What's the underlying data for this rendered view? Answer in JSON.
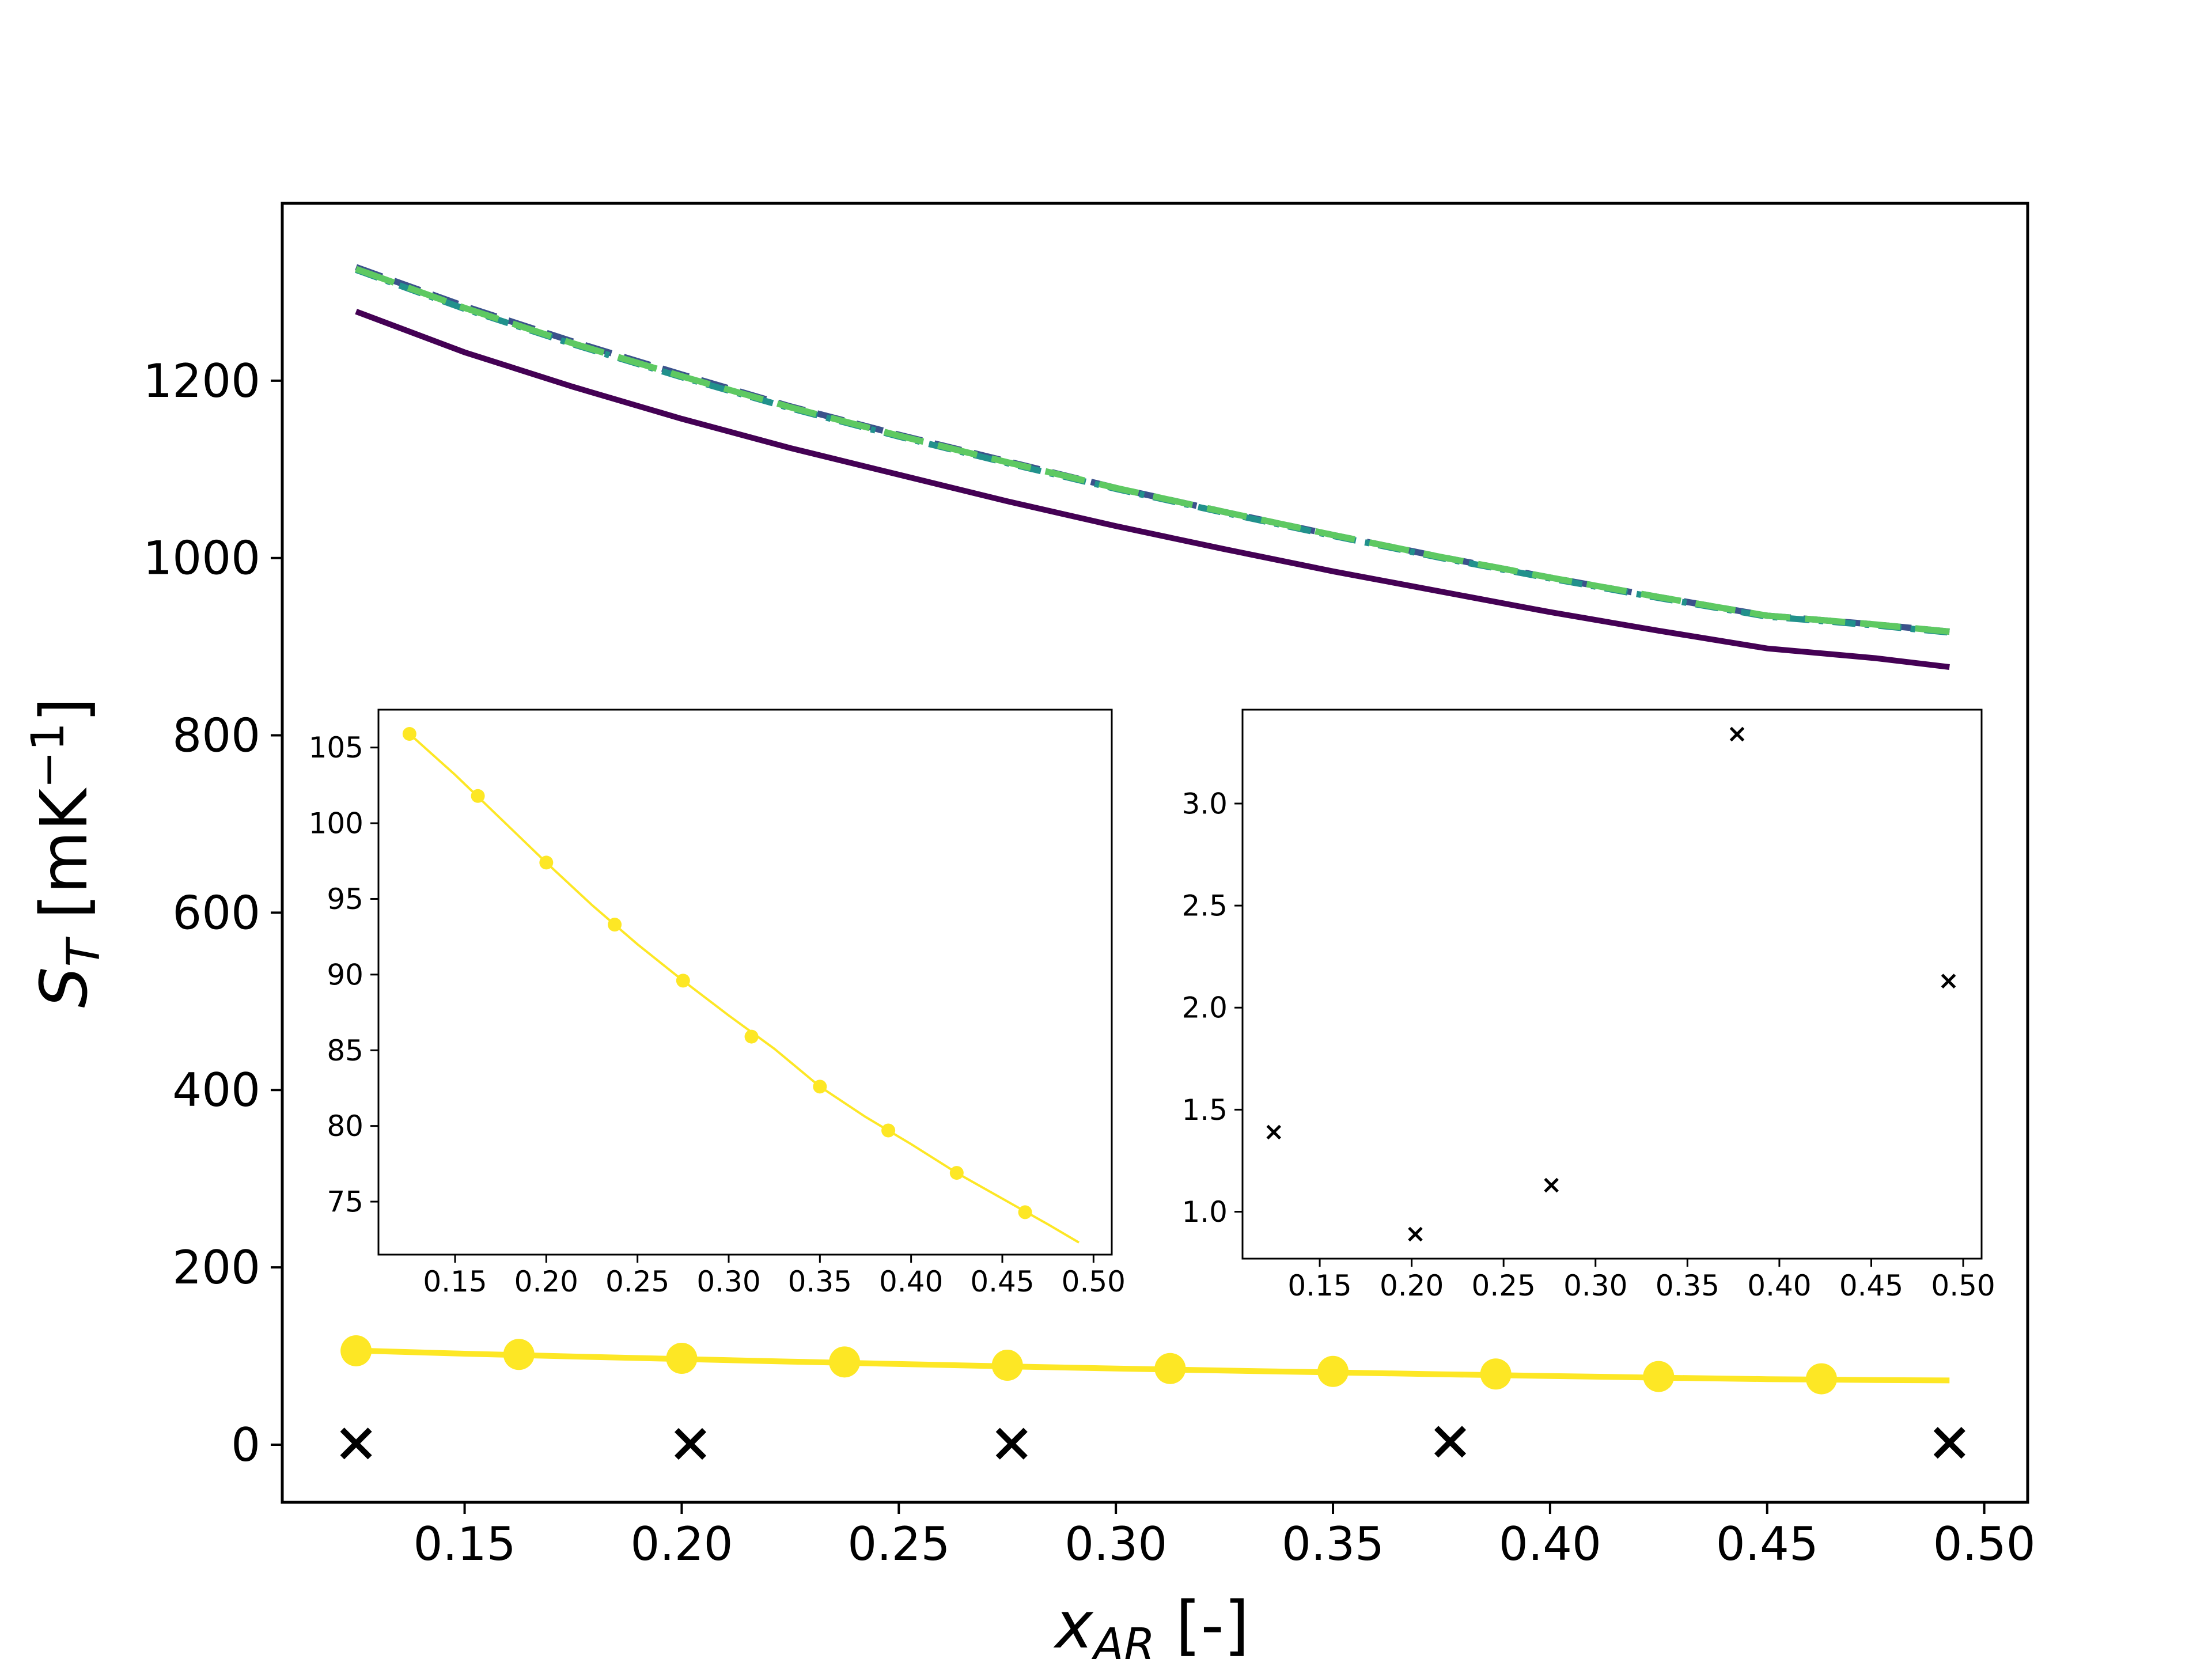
{
  "chart_data": [
    {
      "panel": "main",
      "type": "line",
      "xlabel_main": "x",
      "xlabel_sub": "AR",
      "xlabel_unit": " [-]",
      "ylabel_main": "S",
      "ylabel_sub": "T",
      "ylabel_unit_pre": " [mK",
      "ylabel_unit_sup": "−1",
      "ylabel_unit_post": "]",
      "xlim": [
        0.108,
        0.51
      ],
      "ylim": [
        -65,
        1400
      ],
      "xticks": [
        "0.15",
        "0.20",
        "0.25",
        "0.30",
        "0.35",
        "0.40",
        "0.45",
        "0.50"
      ],
      "yticks": [
        "0",
        "200",
        "400",
        "600",
        "800",
        "1000",
        "1200"
      ],
      "grid": false,
      "series": [
        {
          "style": "solid",
          "color": "#440154",
          "x": [
            0.125,
            0.15,
            0.175,
            0.2,
            0.225,
            0.25,
            0.275,
            0.3,
            0.325,
            0.35,
            0.375,
            0.4,
            0.425,
            0.45,
            0.475,
            0.492
          ],
          "values": [
            1278,
            1232,
            1193,
            1157,
            1124,
            1094,
            1064,
            1036,
            1010,
            985,
            962,
            939,
            918,
            898,
            887,
            877
          ]
        },
        {
          "style": "dashed",
          "color": "#3b528b",
          "x": [
            0.125,
            0.15,
            0.175,
            0.2,
            0.225,
            0.25,
            0.275,
            0.3,
            0.325,
            0.35,
            0.375,
            0.4,
            0.425,
            0.45,
            0.475,
            0.492
          ],
          "values": [
            1328,
            1284,
            1244,
            1207,
            1171,
            1139,
            1109,
            1079,
            1052,
            1026,
            1001,
            978,
            956,
            935,
            925,
            917
          ]
        },
        {
          "style": "dashdot",
          "color": "#21918c",
          "x": [
            0.125,
            0.15,
            0.175,
            0.2,
            0.225,
            0.25,
            0.275,
            0.3,
            0.325,
            0.35,
            0.375,
            0.4,
            0.425,
            0.45,
            0.475,
            0.492
          ],
          "values": [
            1325,
            1281,
            1241,
            1204,
            1169,
            1137,
            1107,
            1078,
            1051,
            1025,
            1000,
            977,
            955,
            934,
            924,
            916
          ]
        },
        {
          "style": "dashed-long",
          "color": "#5ec962",
          "x": [
            0.125,
            0.15,
            0.175,
            0.2,
            0.225,
            0.25,
            0.275,
            0.3,
            0.325,
            0.35,
            0.375,
            0.4,
            0.425,
            0.45,
            0.475,
            0.492
          ],
          "values": [
            1326,
            1282,
            1242,
            1205,
            1170,
            1138,
            1108,
            1079,
            1052,
            1026,
            1001,
            978,
            956,
            935,
            925,
            917
          ]
        },
        {
          "style": "solid-markers",
          "color": "#fde725",
          "line_x": [
            0.125,
            0.15,
            0.175,
            0.2,
            0.225,
            0.25,
            0.275,
            0.3,
            0.325,
            0.35,
            0.375,
            0.4,
            0.425,
            0.45,
            0.475,
            0.492
          ],
          "line_values": [
            106.2,
            102.6,
            99.4,
            96.6,
            93.7,
            91.0,
            88.3,
            85.9,
            83.6,
            81.5,
            79.4,
            77.5,
            75.6,
            73.9,
            72.9,
            72.5
          ],
          "x": [
            0.125,
            0.1625,
            0.2,
            0.2375,
            0.275,
            0.3125,
            0.35,
            0.3875,
            0.425,
            0.4625
          ],
          "values": [
            105.9,
            101.8,
            97.4,
            93.3,
            89.6,
            85.9,
            82.6,
            79.7,
            76.9,
            74.3
          ]
        },
        {
          "style": "x-markers",
          "color": "#000000",
          "x": [
            0.125,
            0.202,
            0.276,
            0.377,
            0.492
          ],
          "values": [
            1.39,
            0.89,
            1.13,
            3.34,
            2.13
          ]
        }
      ]
    },
    {
      "panel": "inset-left",
      "type": "line",
      "xlim": [
        0.108,
        0.51
      ],
      "ylim": [
        71.5,
        107.5
      ],
      "xticks": [
        "0.15",
        "0.20",
        "0.25",
        "0.30",
        "0.35",
        "0.40",
        "0.45",
        "0.50"
      ],
      "yticks": [
        "75",
        "80",
        "85",
        "90",
        "95",
        "100",
        "105"
      ],
      "series": [
        {
          "color": "#fde725",
          "line_x": [
            0.125,
            0.15,
            0.175,
            0.2,
            0.225,
            0.25,
            0.275,
            0.3,
            0.325,
            0.35,
            0.375,
            0.4,
            0.425,
            0.45,
            0.475,
            0.492
          ],
          "line_values": [
            105.9,
            103.2,
            100.3,
            97.4,
            94.6,
            92.0,
            89.6,
            87.3,
            85.1,
            82.6,
            80.6,
            78.8,
            76.9,
            75.2,
            73.5,
            72.3
          ],
          "x": [
            0.125,
            0.1625,
            0.2,
            0.2375,
            0.275,
            0.3125,
            0.35,
            0.3875,
            0.425,
            0.4625
          ],
          "values": [
            105.9,
            101.8,
            97.4,
            93.3,
            89.6,
            85.9,
            82.6,
            79.7,
            76.9,
            74.3
          ]
        }
      ]
    },
    {
      "panel": "inset-right",
      "type": "scatter",
      "xlim": [
        0.108,
        0.51
      ],
      "ylim": [
        0.77,
        3.46
      ],
      "xticks": [
        "0.15",
        "0.20",
        "0.25",
        "0.30",
        "0.35",
        "0.40",
        "0.45",
        "0.50"
      ],
      "yticks": [
        "1.0",
        "1.5",
        "2.0",
        "2.5",
        "3.0"
      ],
      "series": [
        {
          "color": "#000000",
          "x": [
            0.125,
            0.202,
            0.276,
            0.377,
            0.492
          ],
          "values": [
            1.39,
            0.89,
            1.13,
            3.34,
            2.13
          ]
        }
      ]
    }
  ]
}
